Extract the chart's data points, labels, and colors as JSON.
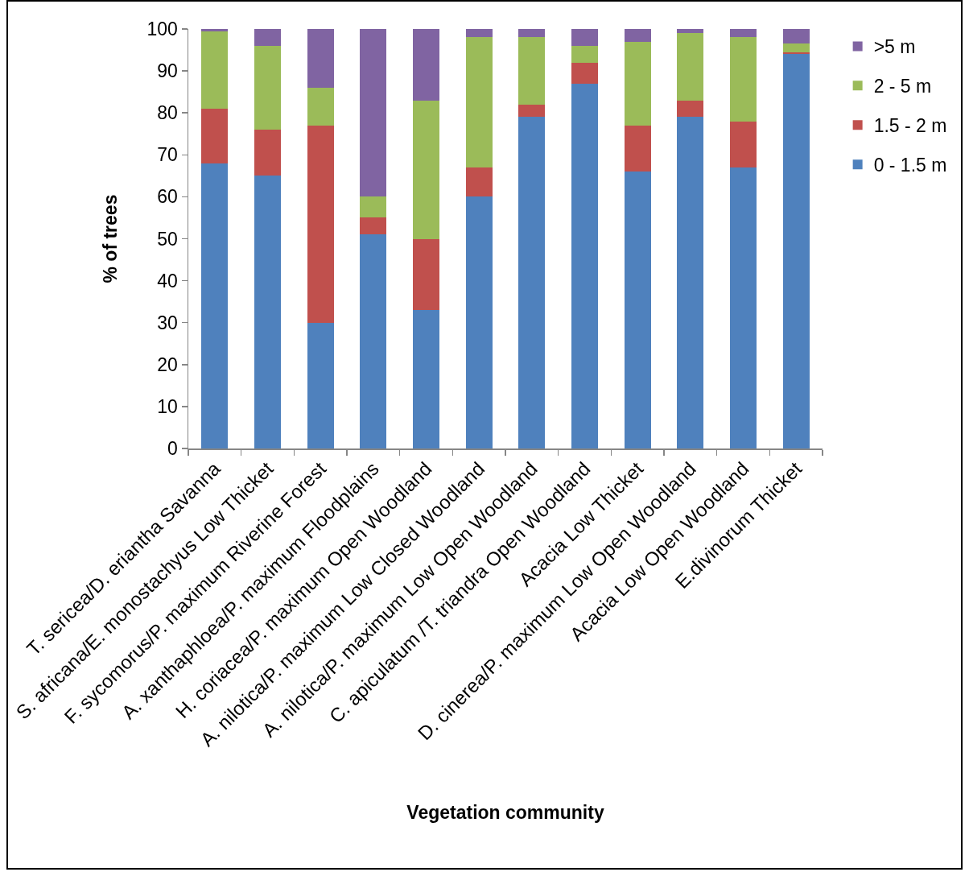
{
  "chart_data": {
    "type": "bar",
    "stacked": true,
    "xlabel": "Vegetation community",
    "ylabel": "% of trees",
    "categories": [
      "T. sericea/D. eriantha Savanna",
      "S. africana/E. monostachyus Low Thicket",
      "F. sycomorus/P. maximum Riverine Forest",
      "A. xanthaphloea/P. maximum Floodplains",
      "H. coriacea/P. maximum Open Woodland",
      "A. nilotica/P. maximum Low Closed Woodland",
      "A. nilotica/P. maximum Low Open Woodland",
      "C. apiculatum /T. triandra Open Woodland",
      "Acacia Low Thicket",
      "D. cinerea/P. maximum Low Open Woodland",
      "Acacia Low Open Woodland",
      "E.divinorum Thicket"
    ],
    "series": [
      {
        "name": "0 - 1.5 m",
        "color": "#4f81bd",
        "values": [
          68,
          65,
          30,
          51,
          33,
          60,
          79,
          87,
          66,
          79,
          67,
          94
        ]
      },
      {
        "name": "1.5 - 2 m",
        "color": "#c0504d",
        "values": [
          13,
          11,
          47,
          4,
          17,
          7,
          3,
          5,
          11,
          4,
          11,
          0.5
        ]
      },
      {
        "name": "2 - 5 m",
        "color": "#9bbb59",
        "values": [
          18.5,
          20,
          9,
          5,
          33,
          31,
          16,
          4,
          20,
          16,
          20,
          2
        ]
      },
      {
        "name": ">5 m",
        "color": "#8064a2",
        "values": [
          0.5,
          4,
          14,
          40,
          17,
          2,
          2,
          4,
          3,
          1,
          2,
          3.5
        ]
      }
    ],
    "ylim": [
      0,
      100
    ],
    "yticks": [
      0,
      10,
      20,
      30,
      40,
      50,
      60,
      70,
      80,
      90,
      100
    ],
    "legend": "top right"
  }
}
